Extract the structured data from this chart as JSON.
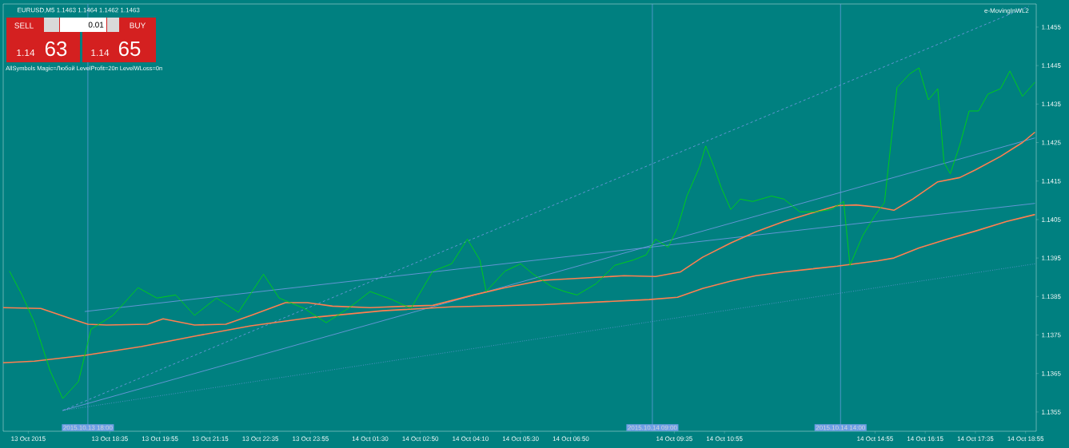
{
  "chart_data": {
    "type": "line",
    "title": "EURUSD,M5  1.1463 1.1464 1.1462 1.1463",
    "annotations": [
      "SELL",
      "0.01",
      "BUY",
      "1.14",
      "63",
      "1.14",
      "65",
      "AllSymbols  Magic=Любой  LevelProfit=20п  LevelWLoss=0п",
      "e-MovingInWL2"
    ],
    "xlim": [
      "2015-10-13T15:45",
      "2015-10-14T19:12"
    ],
    "ylim": [
      1.135,
      1.1461
    ],
    "xticks": [
      {
        "value": "2015-10-13T16:25",
        "label": "13 Oct 2015"
      },
      {
        "value": "2015-10-13T18:35",
        "label": "13 Oct 18:35"
      },
      {
        "value": "2015-10-13T19:55",
        "label": "13 Oct 19:55"
      },
      {
        "value": "2015-10-13T21:15",
        "label": "13 Oct 21:15"
      },
      {
        "value": "2015-10-13T22:35",
        "label": "13 Oct 22:35"
      },
      {
        "value": "2015-10-13T23:55",
        "label": "13 Oct 23:55"
      },
      {
        "value": "2015-10-14T01:30",
        "label": "14 Oct 01:30"
      },
      {
        "value": "2015-10-14T02:50",
        "label": "14 Oct 02:50"
      },
      {
        "value": "2015-10-14T04:10",
        "label": "14 Oct 04:10"
      },
      {
        "value": "2015-10-14T05:30",
        "label": "14 Oct 05:30"
      },
      {
        "value": "2015-10-14T06:50",
        "label": "14 Oct 06:50"
      },
      {
        "value": "2015-10-14T09:35",
        "label": "14 Oct 09:35"
      },
      {
        "value": "2015-10-14T10:55",
        "label": "14 Oct 10:55"
      },
      {
        "value": "2015-10-14T14:55",
        "label": "14 Oct 14:55"
      },
      {
        "value": "2015-10-14T16:15",
        "label": "14 Oct 16:15"
      },
      {
        "value": "2015-10-14T17:35",
        "label": "14 Oct 17:35"
      },
      {
        "value": "2015-10-14T18:55",
        "label": "14 Oct 18:55"
      }
    ],
    "yticks": [
      1.1355,
      1.1365,
      1.1375,
      1.1385,
      1.1395,
      1.1405,
      1.1415,
      1.1425,
      1.1435,
      1.1445,
      1.1455
    ],
    "ref_lines": [
      {
        "axis": "x",
        "value": "2015-10-13T18:00",
        "label": "2015.10.13 18:00",
        "color": "#6f9fe6"
      },
      {
        "axis": "x",
        "value": "2015-10-14T09:00",
        "label": "2015.10.14 09:00",
        "color": "#6f9fe6"
      },
      {
        "axis": "x",
        "value": "2015-10-14T14:00",
        "label": "2015.10.14 14:00",
        "color": "#6f9fe6"
      }
    ],
    "series": [
      {
        "line_style": "solid",
        "color": "#7b9bea",
        "x": [
          "2015-10-13T17:20",
          "2015-10-14T19:10"
        ],
        "values": [
          1.13554,
          1.14262
        ]
      },
      {
        "line_style": "solid",
        "color": "#7b9bea",
        "x": [
          "2015-10-13T17:55",
          "2015-10-14T19:10"
        ],
        "values": [
          1.13811,
          1.14092
        ]
      },
      {
        "line_style": "dashed",
        "color": "#7b9bea",
        "x": [
          "2015-10-13T17:20",
          "2015-10-14T19:00"
        ],
        "values": [
          1.13554,
          1.14604
        ]
      },
      {
        "line_style": "dotted",
        "color": "#7b9bea",
        "x": [
          "2015-10-13T17:20",
          "2015-10-14T19:10"
        ],
        "values": [
          1.13554,
          1.13935
        ]
      },
      {
        "line_style": "solid",
        "color": "#ff7f50",
        "x": [
          "2015-10-13T15:45",
          "2015-10-13T16:35",
          "2015-10-13T17:55",
          "2015-10-13T19:25",
          "2015-10-13T20:50",
          "2015-10-13T22:20",
          "2015-10-14T00:00",
          "2015-10-14T01:50",
          "2015-10-14T03:40",
          "2015-10-14T06:05",
          "2015-10-14T08:55",
          "2015-10-14T09:40",
          "2015-10-14T10:20",
          "2015-10-14T11:05",
          "2015-10-14T11:45",
          "2015-10-14T12:30",
          "2015-10-14T13:10",
          "2015-10-14T13:55",
          "2015-10-14T15:00",
          "2015-10-14T15:25",
          "2015-10-14T16:05",
          "2015-10-14T16:50",
          "2015-10-14T17:35",
          "2015-10-14T18:25",
          "2015-10-14T19:10"
        ],
        "values": [
          1.13678,
          1.13682,
          1.13697,
          1.1372,
          1.13747,
          1.13774,
          1.13796,
          1.13813,
          1.13823,
          1.13829,
          1.13842,
          1.13848,
          1.13871,
          1.1389,
          1.13904,
          1.13914,
          1.13921,
          1.13929,
          1.13943,
          1.1395,
          1.13976,
          1.13999,
          1.1402,
          1.14045,
          1.14063
        ]
      },
      {
        "line_style": "solid",
        "color": "#ff7f50",
        "x": [
          "2015-10-13T15:45",
          "2015-10-13T16:45",
          "2015-10-13T17:30",
          "2015-10-13T18:00",
          "2015-10-13T18:30",
          "2015-10-13T19:35",
          "2015-10-13T20:00",
          "2015-10-13T20:50",
          "2015-10-13T21:40",
          "2015-10-13T22:20",
          "2015-10-13T23:15",
          "2015-10-13T23:50",
          "2015-10-14T00:30",
          "2015-10-14T01:30",
          "2015-10-14T02:30",
          "2015-10-14T03:10",
          "2015-10-14T04:15",
          "2015-10-14T05:05",
          "2015-10-14T06:05",
          "2015-10-14T08:15",
          "2015-10-14T09:05",
          "2015-10-14T09:45",
          "2015-10-14T10:20",
          "2015-10-14T11:05",
          "2015-10-14T11:45",
          "2015-10-14T12:30",
          "2015-10-14T13:10",
          "2015-10-14T13:55",
          "2015-10-14T14:25",
          "2015-10-14T15:00",
          "2015-10-14T15:25",
          "2015-10-14T15:55",
          "2015-10-14T16:35",
          "2015-10-14T17:10",
          "2015-10-14T17:35",
          "2015-10-14T18:15",
          "2015-10-14T18:50",
          "2015-10-14T19:10"
        ],
        "values": [
          1.13821,
          1.13819,
          1.13794,
          1.13778,
          1.13776,
          1.13778,
          1.13792,
          1.13776,
          1.13778,
          1.13801,
          1.13834,
          1.13834,
          1.13825,
          1.13821,
          1.13825,
          1.13827,
          1.13854,
          1.13873,
          1.13892,
          1.13904,
          1.13902,
          1.13914,
          1.13952,
          1.13989,
          1.14018,
          1.14045,
          1.14065,
          1.14086,
          1.14088,
          1.14082,
          1.14074,
          1.14103,
          1.14148,
          1.14159,
          1.14179,
          1.14214,
          1.1425,
          1.14277
        ]
      },
      {
        "line_style": "solid",
        "color": "#00e000",
        "x": [
          "2015-10-13T15:55",
          "2015-10-13T16:15",
          "2015-10-13T16:35",
          "2015-10-13T17:00",
          "2015-10-13T17:20",
          "2015-10-13T17:45",
          "2015-10-13T18:05",
          "2015-10-13T18:40",
          "2015-10-13T19:20",
          "2015-10-13T19:50",
          "2015-10-13T20:20",
          "2015-10-13T20:50",
          "2015-10-13T21:25",
          "2015-10-13T22:00",
          "2015-10-13T22:40",
          "2015-10-13T23:05",
          "2015-10-13T23:45",
          "2015-10-14T00:20",
          "2015-10-14T00:55",
          "2015-10-14T01:30",
          "2015-10-14T02:05",
          "2015-10-14T02:35",
          "2015-10-14T03:10",
          "2015-10-14T03:40",
          "2015-10-14T04:05",
          "2015-10-14T04:25",
          "2015-10-14T04:35",
          "2015-10-14T05:05",
          "2015-10-14T05:30",
          "2015-10-14T05:50",
          "2015-10-14T06:20",
          "2015-10-14T06:40",
          "2015-10-14T07:00",
          "2015-10-14T07:30",
          "2015-10-14T08:00",
          "2015-10-14T08:30",
          "2015-10-14T08:50",
          "2015-10-14T09:05",
          "2015-10-14T09:25",
          "2015-10-14T09:40",
          "2015-10-14T09:55",
          "2015-10-14T10:15",
          "2015-10-14T10:25",
          "2015-10-14T10:40",
          "2015-10-14T10:50",
          "2015-10-14T11:05",
          "2015-10-14T11:20",
          "2015-10-14T11:40",
          "2015-10-14T12:10",
          "2015-10-14T12:30",
          "2015-10-14T12:55",
          "2015-10-14T13:20",
          "2015-10-14T13:45",
          "2015-10-14T14:05",
          "2015-10-14T14:15",
          "2015-10-14T14:35",
          "2015-10-14T14:55",
          "2015-10-14T15:10",
          "2015-10-14T15:30",
          "2015-10-14T15:50",
          "2015-10-14T16:05",
          "2015-10-14T16:20",
          "2015-10-14T16:35",
          "2015-10-14T16:45",
          "2015-10-14T16:55",
          "2015-10-14T17:10",
          "2015-10-14T17:25",
          "2015-10-14T17:40",
          "2015-10-14T17:55",
          "2015-10-14T18:15",
          "2015-10-14T18:30",
          "2015-10-14T18:50",
          "2015-10-14T19:10"
        ],
        "values": [
          1.13916,
          1.13854,
          1.13782,
          1.13656,
          1.13585,
          1.13629,
          1.13765,
          1.13801,
          1.13873,
          1.13846,
          1.13854,
          1.13801,
          1.13846,
          1.13809,
          1.13908,
          1.13846,
          1.13819,
          1.13782,
          1.13819,
          1.13863,
          1.13842,
          1.13819,
          1.13916,
          1.13935,
          1.13999,
          1.13945,
          1.13863,
          1.13916,
          1.13935,
          1.13908,
          1.13875,
          1.13863,
          1.13854,
          1.13883,
          1.13931,
          1.13945,
          1.13958,
          1.13999,
          1.13978,
          1.14028,
          1.14111,
          1.14186,
          1.14241,
          1.14179,
          1.14132,
          1.14076,
          1.14103,
          1.14097,
          1.14111,
          1.14103,
          1.1407,
          1.1407,
          1.14076,
          1.14097,
          1.13931,
          1.14007,
          1.14061,
          1.14094,
          1.14393,
          1.14428,
          1.14444,
          1.14361,
          1.1439,
          1.14198,
          1.14169,
          1.14243,
          1.14332,
          1.14332,
          1.14376,
          1.1439,
          1.14436,
          1.1437,
          1.14407
        ]
      }
    ]
  }
}
